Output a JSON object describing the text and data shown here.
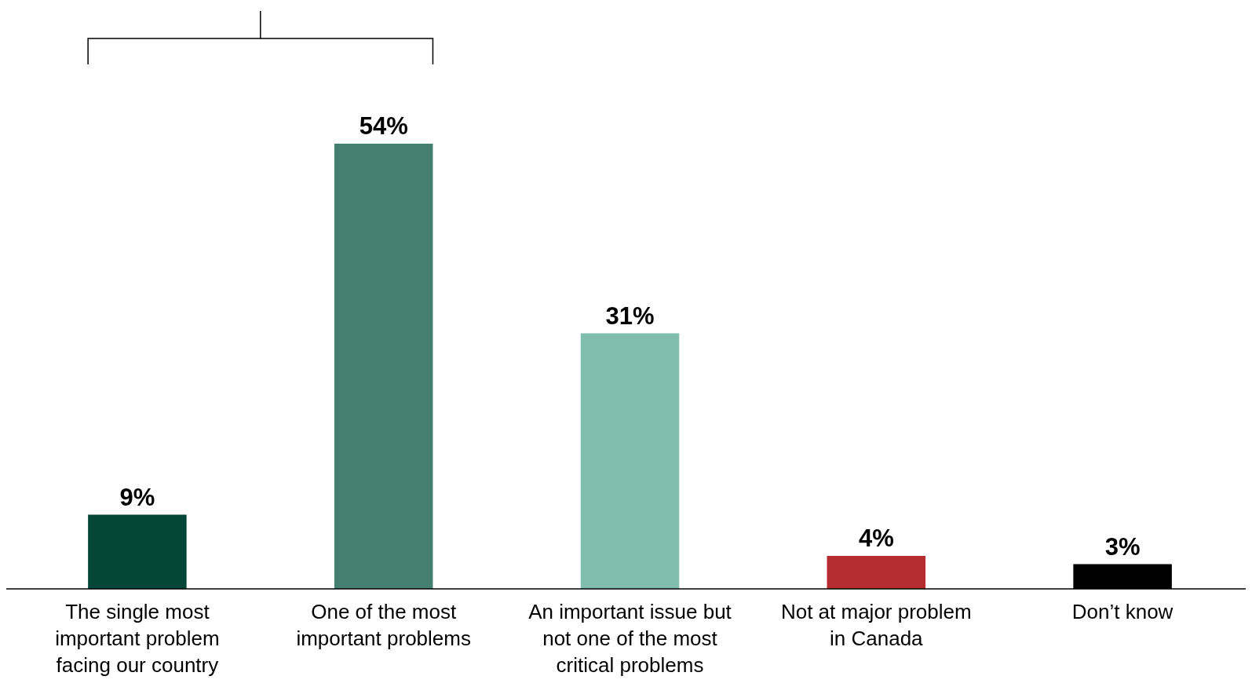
{
  "chart_data": {
    "type": "bar",
    "categories": [
      "The single most important problem facing our country",
      "One of the most important problems",
      "An important issue but not one of the most critical problems",
      "Not at major problem in Canada",
      "Don’t know"
    ],
    "values": [
      9,
      54,
      31,
      4,
      3
    ],
    "colors": [
      "#044638",
      "#457f6f",
      "#81bead",
      "#b52d30",
      "#000000"
    ],
    "value_labels": [
      "9%",
      "54%",
      "31%",
      "4%",
      "3%"
    ]
  }
}
